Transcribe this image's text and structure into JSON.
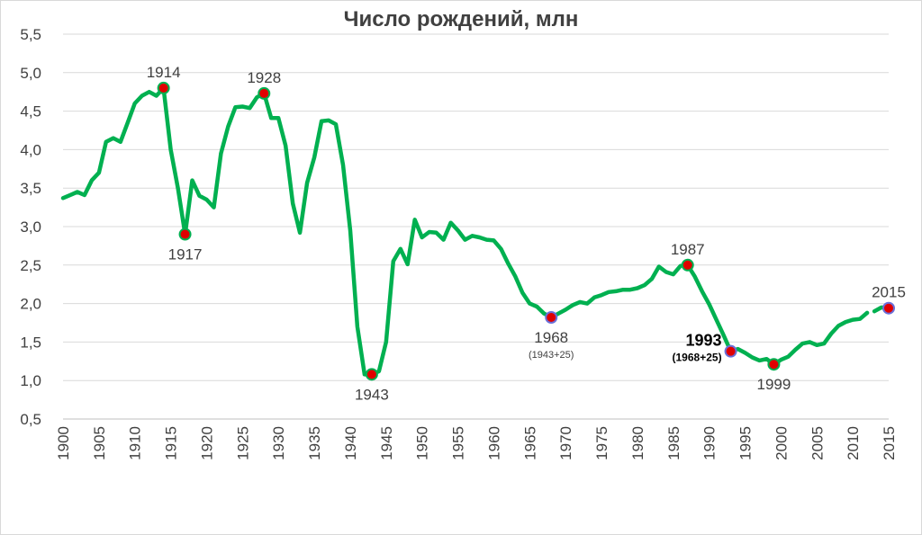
{
  "chart_data": {
    "type": "line",
    "title": "Число рождений, млн",
    "xlabel": "",
    "ylabel": "",
    "xlim": [
      1900,
      2015
    ],
    "ylim": [
      0.5,
      5.5
    ],
    "y_ticks": [
      "0,5",
      "1,0",
      "1,5",
      "2,0",
      "2,5",
      "3,0",
      "3,5",
      "4,0",
      "4,5",
      "5,0",
      "5,5"
    ],
    "x_ticks": [
      "1900",
      "1905",
      "1910",
      "1915",
      "1920",
      "1925",
      "1930",
      "1935",
      "1940",
      "1945",
      "1950",
      "1955",
      "1960",
      "1965",
      "1970",
      "1975",
      "1980",
      "1985",
      "1990",
      "1995",
      "2000",
      "2005",
      "2010",
      "2015"
    ],
    "grid": true,
    "line_color": "#00b050",
    "series": [
      {
        "segments": [
          [
            [
              1900,
              3.37
            ],
            [
              1901,
              3.41
            ],
            [
              1902,
              3.45
            ],
            [
              1903,
              3.41
            ],
            [
              1904,
              3.6
            ],
            [
              1905,
              3.7
            ],
            [
              1906,
              4.1
            ],
            [
              1907,
              4.15
            ],
            [
              1908,
              4.1
            ],
            [
              1909,
              4.35
            ],
            [
              1910,
              4.6
            ],
            [
              1911,
              4.7
            ],
            [
              1912,
              4.75
            ],
            [
              1913,
              4.7
            ],
            [
              1914,
              4.8
            ],
            [
              1915,
              4.0
            ],
            [
              1916,
              3.5
            ],
            [
              1917,
              2.9
            ],
            [
              1918,
              3.6
            ],
            [
              1919,
              3.4
            ],
            [
              1920,
              3.35
            ],
            [
              1921,
              3.25
            ],
            [
              1922,
              3.95
            ],
            [
              1923,
              4.3
            ],
            [
              1924,
              4.55
            ],
            [
              1925,
              4.56
            ],
            [
              1926,
              4.54
            ],
            [
              1927,
              4.68
            ],
            [
              1928,
              4.73
            ],
            [
              1929,
              4.41
            ],
            [
              1930,
              4.41
            ],
            [
              1931,
              4.05
            ],
            [
              1932,
              3.3
            ],
            [
              1933,
              2.92
            ],
            [
              1934,
              3.57
            ],
            [
              1935,
              3.9
            ],
            [
              1936,
              4.37
            ],
            [
              1937,
              4.38
            ],
            [
              1938,
              4.33
            ],
            [
              1939,
              3.8
            ],
            [
              1940,
              2.95
            ],
            [
              1941,
              1.7
            ],
            [
              1942,
              1.08
            ],
            [
              1943,
              1.08
            ],
            [
              1944,
              1.12
            ],
            [
              1945,
              1.5
            ],
            [
              1946,
              2.55
            ],
            [
              1947,
              2.71
            ],
            [
              1948,
              2.51
            ],
            [
              1949,
              3.09
            ],
            [
              1950,
              2.86
            ],
            [
              1951,
              2.93
            ],
            [
              1952,
              2.92
            ],
            [
              1953,
              2.83
            ],
            [
              1954,
              3.05
            ],
            [
              1955,
              2.95
            ],
            [
              1956,
              2.83
            ],
            [
              1957,
              2.88
            ],
            [
              1958,
              2.86
            ],
            [
              1959,
              2.83
            ],
            [
              1960,
              2.82
            ],
            [
              1961,
              2.71
            ],
            [
              1962,
              2.52
            ],
            [
              1963,
              2.35
            ],
            [
              1964,
              2.14
            ],
            [
              1965,
              2.0
            ],
            [
              1966,
              1.96
            ],
            [
              1967,
              1.87
            ],
            [
              1968,
              1.82
            ],
            [
              1969,
              1.87
            ],
            [
              1970,
              1.92
            ],
            [
              1971,
              1.98
            ],
            [
              1972,
              2.02
            ],
            [
              1973,
              2.0
            ],
            [
              1974,
              2.08
            ],
            [
              1975,
              2.11
            ],
            [
              1976,
              2.15
            ],
            [
              1977,
              2.16
            ],
            [
              1978,
              2.18
            ],
            [
              1979,
              2.18
            ],
            [
              1980,
              2.2
            ],
            [
              1981,
              2.24
            ],
            [
              1982,
              2.32
            ],
            [
              1983,
              2.48
            ],
            [
              1984,
              2.41
            ],
            [
              1985,
              2.38
            ],
            [
              1986,
              2.49
            ],
            [
              1987,
              2.5
            ],
            [
              1988,
              2.35
            ],
            [
              1989,
              2.16
            ],
            [
              1990,
              1.99
            ],
            [
              1991,
              1.79
            ],
            [
              1992,
              1.59
            ],
            [
              1993,
              1.38
            ],
            [
              1994,
              1.41
            ],
            [
              1995,
              1.36
            ],
            [
              1996,
              1.3
            ],
            [
              1997,
              1.26
            ],
            [
              1998,
              1.28
            ],
            [
              1999,
              1.21
            ],
            [
              2000,
              1.27
            ],
            [
              2001,
              1.31
            ],
            [
              2002,
              1.4
            ],
            [
              2003,
              1.48
            ],
            [
              2004,
              1.5
            ],
            [
              2005,
              1.46
            ],
            [
              2006,
              1.48
            ],
            [
              2007,
              1.61
            ],
            [
              2008,
              1.71
            ],
            [
              2009,
              1.76
            ],
            [
              2010,
              1.79
            ],
            [
              2011,
              1.8
            ],
            [
              2012,
              1.88
            ]
          ],
          [
            [
              2013,
              1.9
            ],
            [
              2014,
              1.95
            ],
            [
              2015,
              1.94
            ]
          ]
        ]
      }
    ],
    "markers": [
      {
        "year": 1914,
        "value": 4.8,
        "fill": "#e00000",
        "stroke": "#00b050",
        "label": "1914",
        "pos": "above"
      },
      {
        "year": 1917,
        "value": 2.9,
        "fill": "#e00000",
        "stroke": "#00b050",
        "label": "1917",
        "pos": "below"
      },
      {
        "year": 1928,
        "value": 4.73,
        "fill": "#e00000",
        "stroke": "#00b050",
        "label": "1928",
        "pos": "above"
      },
      {
        "year": 1943,
        "value": 1.08,
        "fill": "#e00000",
        "stroke": "#00b050",
        "label": "1943",
        "pos": "below"
      },
      {
        "year": 1968,
        "value": 1.82,
        "fill": "#e00000",
        "stroke": "#6a6fd8",
        "label": "1968",
        "note": "(1943+25)",
        "pos": "below"
      },
      {
        "year": 1987,
        "value": 2.5,
        "fill": "#e00000",
        "stroke": "#00b050",
        "label": "1987",
        "pos": "above"
      },
      {
        "year": 1993,
        "value": 1.38,
        "fill": "#e00000",
        "stroke": "#6a6fd8",
        "label": "1993",
        "note": "(1968+25)",
        "pos": "left",
        "bold": true
      },
      {
        "year": 1999,
        "value": 1.21,
        "fill": "#e00000",
        "stroke": "#00b050",
        "label": "1999",
        "pos": "below"
      },
      {
        "year": 2015,
        "value": 1.94,
        "fill": "#e00000",
        "stroke": "#6a6fd8",
        "label": "2015",
        "pos": "above"
      }
    ]
  }
}
